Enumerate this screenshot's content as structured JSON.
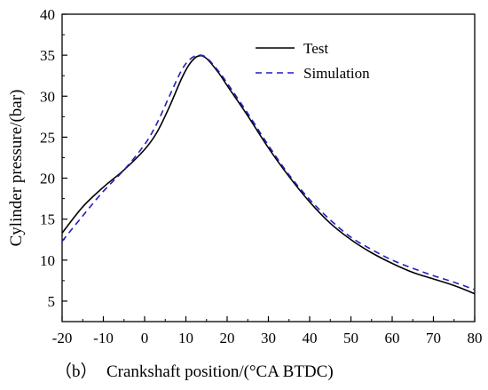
{
  "chart_data": {
    "type": "line",
    "panel_label": "（b）",
    "xlabel": "Crankshaft position/(°CA BTDC)",
    "ylabel": "Cylinder pressure/(bar)",
    "xlim": [
      -20,
      80
    ],
    "ylim": [
      2.5,
      40
    ],
    "xticks": [
      -20,
      -10,
      0,
      10,
      20,
      30,
      40,
      50,
      60,
      70,
      80
    ],
    "yticks": [
      5,
      10,
      15,
      20,
      25,
      30,
      35,
      40
    ],
    "grid": false,
    "legend_position": "top-right",
    "series": [
      {
        "name": "Test",
        "color": "#000000",
        "dash": "solid",
        "x": [
          -20,
          -15,
          -10,
          -5,
          0,
          3,
          6,
          9,
          11,
          13,
          15,
          18,
          20,
          25,
          30,
          35,
          40,
          45,
          50,
          55,
          60,
          65,
          70,
          75,
          80
        ],
        "y": [
          13.3,
          16.5,
          18.9,
          21.0,
          23.5,
          25.6,
          28.7,
          32.2,
          34.0,
          34.9,
          34.6,
          32.8,
          31.3,
          27.6,
          23.7,
          20.2,
          17.1,
          14.5,
          12.5,
          10.9,
          9.6,
          8.5,
          7.7,
          6.9,
          5.9
        ]
      },
      {
        "name": "Simulation",
        "color": "#1f1fbf",
        "dash": "dashed",
        "x": [
          -20,
          -15,
          -10,
          -5,
          0,
          3,
          6,
          9,
          11,
          13,
          15,
          18,
          20,
          25,
          30,
          35,
          40,
          45,
          50,
          55,
          60,
          65,
          70,
          75,
          80
        ],
        "y": [
          12.3,
          15.4,
          18.4,
          21.0,
          24.1,
          26.7,
          30.0,
          33.2,
          34.5,
          35.0,
          34.7,
          33.0,
          31.6,
          27.9,
          24.0,
          20.4,
          17.4,
          14.9,
          12.8,
          11.3,
          10.0,
          9.0,
          8.1,
          7.3,
          6.4
        ]
      }
    ]
  }
}
